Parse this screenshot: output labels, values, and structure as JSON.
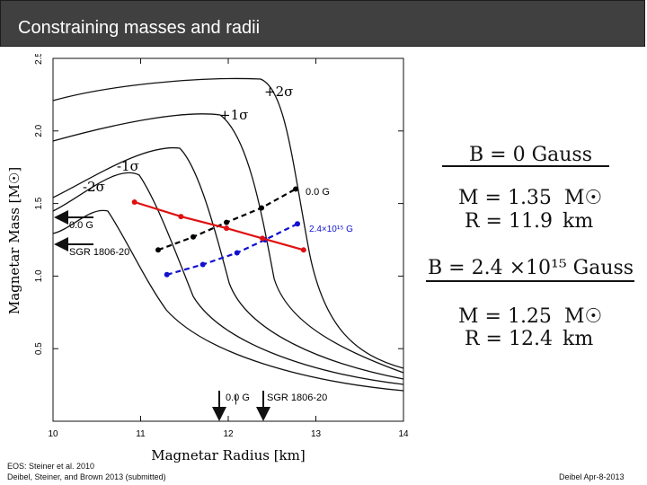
{
  "slide": {
    "title": "Constraining masses and radii",
    "footer_left": [
      "EOS: Steiner et al. 2010",
      "Deibel, Steiner, and Brown 2013 (submitted)"
    ],
    "footer_right": "Deibel Apr-8-2013"
  },
  "chart_data": {
    "type": "line",
    "xlabel": "Magnetar Radius [km]",
    "ylabel": "Magnetar Mass [M☉]",
    "xlim": [
      10,
      14
    ],
    "ylim": [
      0,
      2.5
    ],
    "x_ticks": [
      "10",
      "11",
      "12",
      "13",
      "14"
    ],
    "y_ticks": [
      "0.5",
      "1.0",
      "1.5",
      "2.0",
      "2.5"
    ],
    "eos_curve_labels": [
      "+2σ",
      "+1σ",
      "-1σ",
      "-2σ"
    ],
    "series": [
      {
        "name": "0.0 G",
        "color": "#000000",
        "style": "dashed",
        "x": [
          11.2,
          11.6,
          11.98,
          12.38,
          12.77
        ],
        "y": [
          1.18,
          1.27,
          1.37,
          1.47,
          1.6
        ]
      },
      {
        "name": "2.4×10¹⁵ G",
        "color": "#1010d0",
        "style": "dashed",
        "x": [
          11.3,
          11.71,
          12.1,
          12.42,
          12.79
        ],
        "y": [
          1.01,
          1.08,
          1.16,
          1.25,
          1.36
        ]
      },
      {
        "name": "SGR 1806-20",
        "color": "#e01010",
        "style": "solid",
        "x": [
          10.93,
          11.46,
          11.98,
          12.39,
          12.86
        ],
        "y": [
          1.51,
          1.41,
          1.33,
          1.26,
          1.18
        ]
      }
    ],
    "annotations": {
      "left_arrows": [
        "0.0 G",
        "SGR 1806-20"
      ],
      "bottom_arrows": [
        "0.0 G",
        "SGR 1806-20"
      ],
      "curve_end_labels": [
        "0.0  G",
        "2.4×10¹⁵ G"
      ]
    }
  },
  "results": [
    {
      "field_label": "B = 0 Gauss",
      "mass_label": "M = 1.35",
      "mass_unit": "M☉",
      "radius_label": "R = 11.9",
      "radius_unit": "km"
    },
    {
      "field_label": "B = 2.4 ×10¹⁵ Gauss",
      "mass_label": "M = 1.25",
      "mass_unit": "M☉",
      "radius_label": "R = 12.4",
      "radius_unit": "km"
    }
  ],
  "colors": {
    "title_bg": "#404040",
    "red": "#e01010",
    "blue": "#1010d0",
    "black": "#000000"
  }
}
